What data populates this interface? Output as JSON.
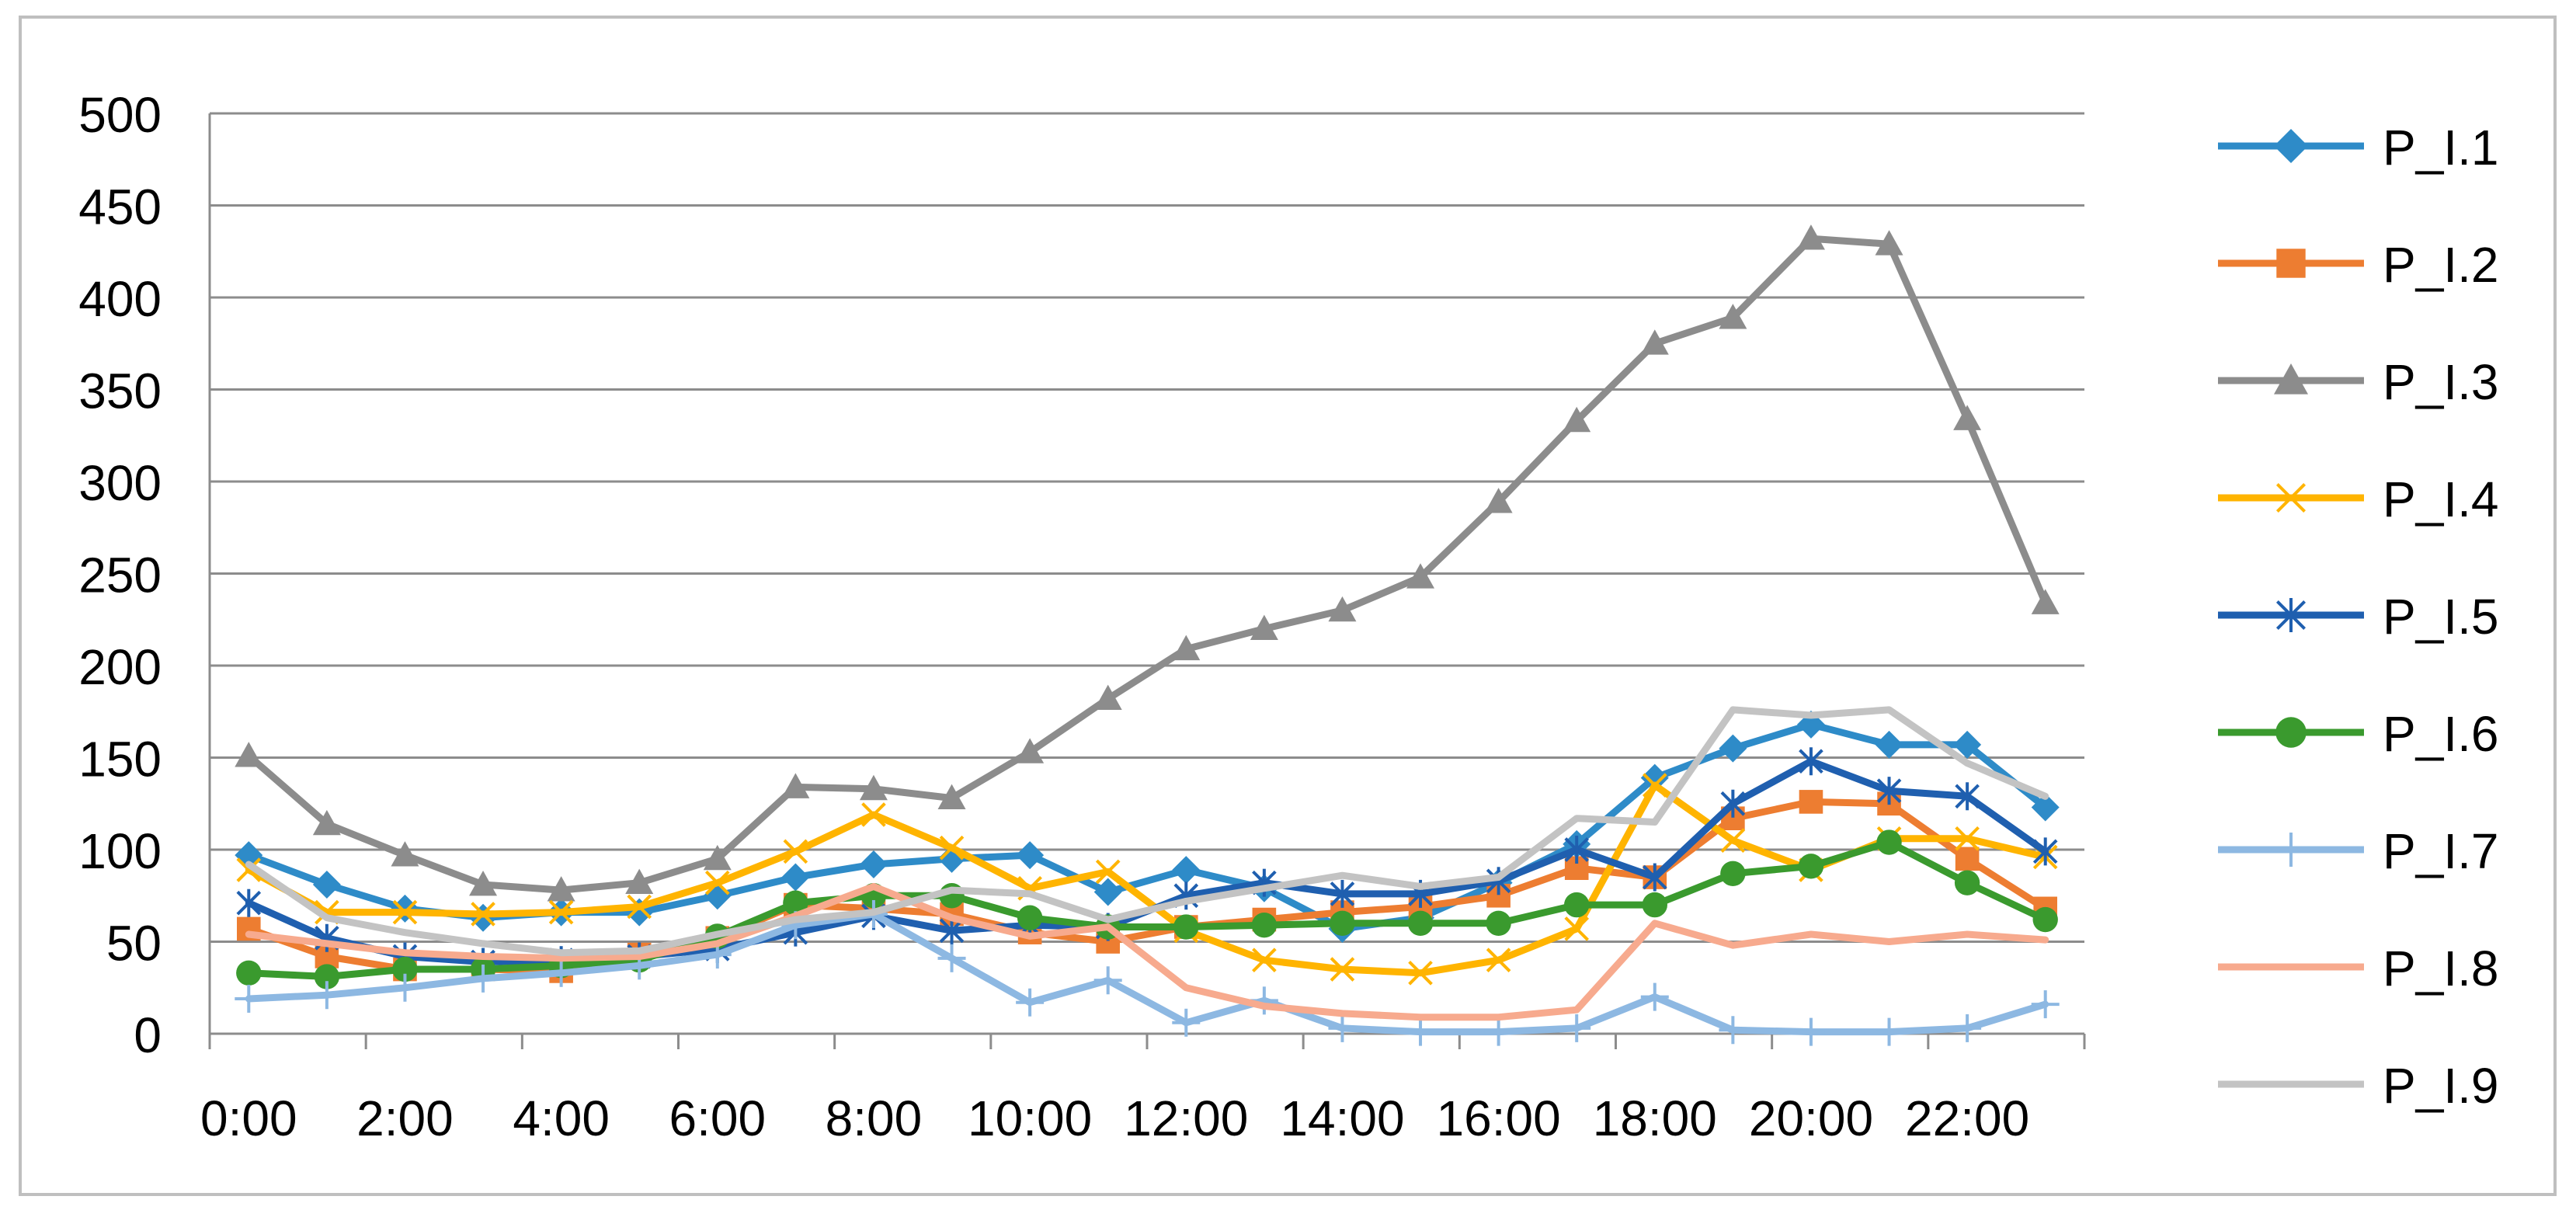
{
  "chart_data": {
    "type": "line",
    "title": "",
    "xlabel": "",
    "ylabel": "",
    "ylim": [
      0,
      500
    ],
    "y_ticks": [
      0,
      50,
      100,
      150,
      200,
      250,
      300,
      350,
      400,
      450,
      500
    ],
    "y_tick_labels": [
      "0",
      "50",
      "100",
      "150",
      "200",
      "250",
      "300",
      "350",
      "400",
      "450",
      "500"
    ],
    "x": [
      "0:00",
      "1:00",
      "2:00",
      "3:00",
      "4:00",
      "5:00",
      "6:00",
      "7:00",
      "8:00",
      "9:00",
      "10:00",
      "11:00",
      "12:00",
      "13:00",
      "14:00",
      "15:00",
      "16:00",
      "17:00",
      "18:00",
      "19:00",
      "20:00",
      "21:00",
      "22:00",
      "23:00"
    ],
    "x_tick_labels": [
      "0:00",
      "2:00",
      "4:00",
      "6:00",
      "8:00",
      "10:00",
      "12:00",
      "14:00",
      "16:00",
      "18:00",
      "20:00",
      "22:00"
    ],
    "grid": true,
    "legend_position": "right",
    "series": [
      {
        "name": "P_I.1",
        "color": "#2E8BC8",
        "marker": "diamond",
        "values": [
          97,
          81,
          68,
          63,
          66,
          66,
          75,
          85,
          92,
          95,
          97,
          77,
          89,
          79,
          57,
          63,
          82,
          103,
          139,
          155,
          168,
          157,
          157,
          123
        ]
      },
      {
        "name": "P_I.2",
        "color": "#ED7D31",
        "marker": "square",
        "values": [
          57,
          42,
          35,
          35,
          34,
          43,
          52,
          70,
          68,
          65,
          55,
          50,
          58,
          62,
          66,
          69,
          75,
          90,
          85,
          117,
          126,
          125,
          95,
          68
        ]
      },
      {
        "name": "P_I.3",
        "color": "#8C8C8C",
        "marker": "triangle",
        "values": [
          151,
          114,
          97,
          81,
          78,
          82,
          95,
          134,
          133,
          128,
          153,
          182,
          209,
          220,
          230,
          248,
          289,
          333,
          375,
          389,
          432,
          429,
          334,
          234
        ]
      },
      {
        "name": "P_I.4",
        "color": "#FFB400",
        "marker": "x",
        "values": [
          89,
          66,
          66,
          65,
          66,
          69,
          82,
          99,
          119,
          101,
          79,
          88,
          56,
          40,
          35,
          33,
          40,
          57,
          135,
          105,
          89,
          106,
          106,
          96
        ]
      },
      {
        "name": "P_I.5",
        "color": "#1F5FAF",
        "marker": "star",
        "values": [
          71,
          52,
          42,
          39,
          40,
          42,
          46,
          55,
          64,
          56,
          59,
          58,
          75,
          82,
          76,
          76,
          83,
          100,
          85,
          125,
          148,
          132,
          129,
          99
        ]
      },
      {
        "name": "P_I.6",
        "color": "#3A9A2E",
        "marker": "circle",
        "values": [
          33,
          31,
          35,
          35,
          37,
          40,
          53,
          71,
          75,
          75,
          63,
          58,
          58,
          59,
          60,
          60,
          60,
          70,
          70,
          87,
          91,
          104,
          82,
          62
        ]
      },
      {
        "name": "P_I.7",
        "color": "#8DB8E2",
        "marker": "plus",
        "values": [
          19,
          21,
          25,
          30,
          33,
          37,
          43,
          59,
          65,
          41,
          17,
          29,
          6,
          18,
          3,
          1,
          1,
          3,
          20,
          2,
          1,
          1,
          3,
          16
        ]
      },
      {
        "name": "P_I.8",
        "color": "#F7AA8E",
        "marker": "none",
        "values": [
          54,
          49,
          44,
          42,
          41,
          42,
          49,
          64,
          80,
          63,
          53,
          58,
          25,
          15,
          11,
          9,
          9,
          13,
          60,
          48,
          54,
          50,
          54,
          51
        ]
      },
      {
        "name": "P_I.9",
        "color": "#C3C3C3",
        "marker": "none",
        "values": [
          92,
          63,
          55,
          49,
          44,
          45,
          54,
          62,
          66,
          78,
          76,
          62,
          72,
          79,
          86,
          80,
          85,
          117,
          115,
          176,
          173,
          176,
          147,
          129
        ]
      }
    ]
  }
}
